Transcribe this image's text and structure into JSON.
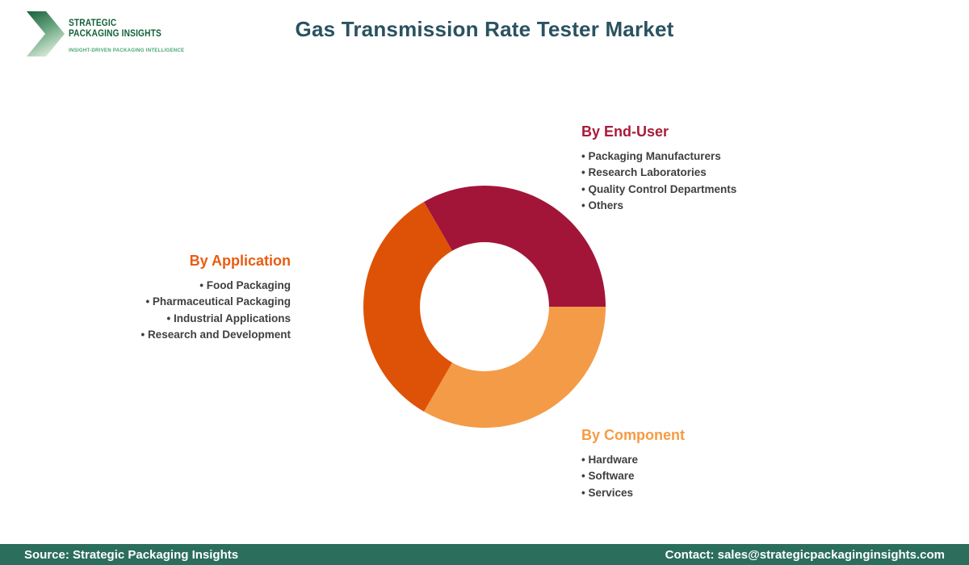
{
  "page": {
    "title": "Gas Transmission Rate Tester Market"
  },
  "logo": {
    "name_line1": "STRATEGIC",
    "name_line2": "PACKAGING INSIGHTS",
    "tagline": "INSIGHT-DRIVEN PACKAGING INTELLIGENCE",
    "chevron_color_dark": "#15603a",
    "chevron_color_light": "#d3e6d3",
    "text_color": "#10613a",
    "tagline_color": "#47a473"
  },
  "chart_data": {
    "type": "pie",
    "donut": true,
    "title": "Gas Transmission Rate Tester Market segmentation donut",
    "start_angle_deg_from_top": -30,
    "inner_radius_ratio": 0.533,
    "legend_position": "around-chart",
    "segments": [
      {
        "label": "By End-User",
        "value": 33.33,
        "color": "#a21539"
      },
      {
        "label": "By Component",
        "value": 33.33,
        "color": "#f49b48"
      },
      {
        "label": "By Application",
        "value": 33.33,
        "color": "#de5207"
      }
    ]
  },
  "groups": {
    "end_user": {
      "heading": "By End-User",
      "color": "#a81b39",
      "items": [
        "Packaging Manufacturers",
        "Research Laboratories",
        "Quality Control Departments",
        "Others"
      ]
    },
    "application": {
      "heading": "By Application",
      "color": "#e95c10",
      "items": [
        "Food Packaging",
        "Pharmaceutical Packaging",
        "Industrial Applications",
        "Research and Development"
      ]
    },
    "component": {
      "heading": "By Component",
      "color": "#f79b42",
      "items": [
        "Hardware",
        "Software",
        "Services"
      ]
    }
  },
  "footer": {
    "source": "Source: Strategic Packaging Insights",
    "contact": "Contact: sales@strategicpackaginginsights.com",
    "bar_color": "#2b6e5b"
  },
  "palette": {
    "title_color": "#2a5260",
    "list_text_color": "#3f3f42"
  }
}
